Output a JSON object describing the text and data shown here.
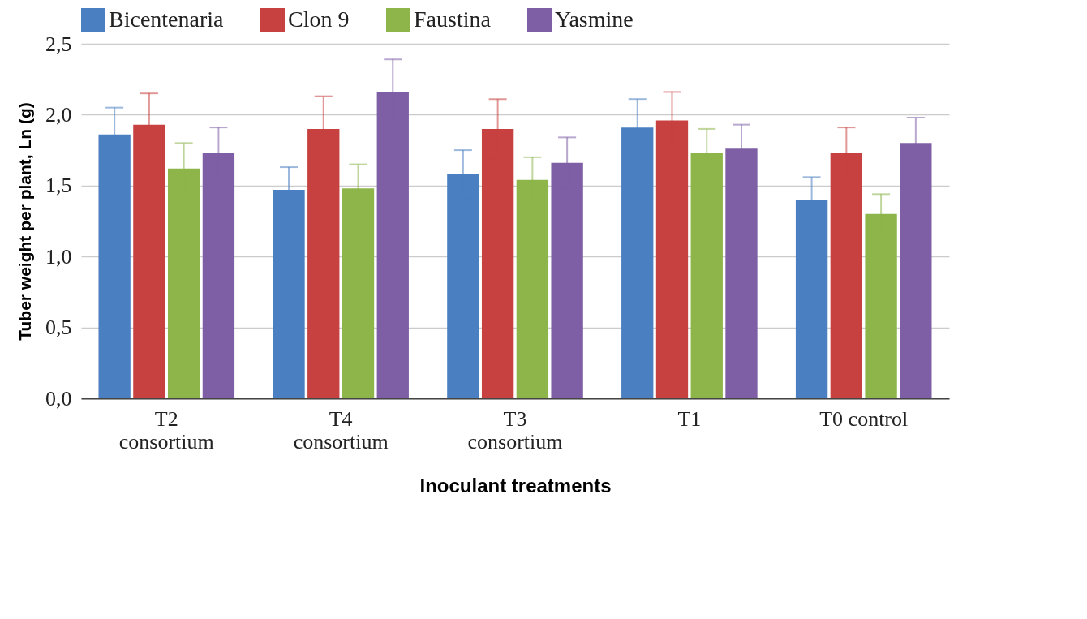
{
  "chart_data": {
    "type": "bar",
    "xlabel": "Inoculant treatments",
    "ylabel": "Tuber weight per plant, Ln (g)",
    "categories": [
      "T2 consortium",
      "T4 consortium",
      "T3 consortium",
      "T1",
      "T0 control"
    ],
    "series": [
      {
        "name": "Bicentenaria",
        "color": "#4a7fc1",
        "values": [
          1.86,
          1.47,
          1.58,
          1.91,
          1.4
        ],
        "errors": [
          0.19,
          0.16,
          0.17,
          0.2,
          0.16
        ]
      },
      {
        "name": "Clon 9",
        "color": "#c6413f",
        "values": [
          1.93,
          1.9,
          1.9,
          1.96,
          1.73
        ],
        "errors": [
          0.22,
          0.23,
          0.21,
          0.2,
          0.18
        ]
      },
      {
        "name": "Faustina",
        "color": "#8db54a",
        "values": [
          1.62,
          1.48,
          1.54,
          1.73,
          1.3
        ],
        "errors": [
          0.18,
          0.17,
          0.16,
          0.17,
          0.14
        ]
      },
      {
        "name": "Yasmine",
        "color": "#7e5fa5",
        "values": [
          1.73,
          2.16,
          1.66,
          1.76,
          1.8
        ],
        "errors": [
          0.18,
          0.23,
          0.18,
          0.17,
          0.18
        ]
      }
    ],
    "ylim": [
      0,
      2.5
    ],
    "yticks": [
      {
        "value": 0,
        "label": "0,0"
      },
      {
        "value": 0.5,
        "label": "0,5"
      },
      {
        "value": 1,
        "label": "1,0"
      },
      {
        "value": 1.5,
        "label": "1,5"
      },
      {
        "value": 2,
        "label": "2,0"
      },
      {
        "value": 2.5,
        "label": "2,5"
      }
    ],
    "grid": "y",
    "legend": "top"
  }
}
